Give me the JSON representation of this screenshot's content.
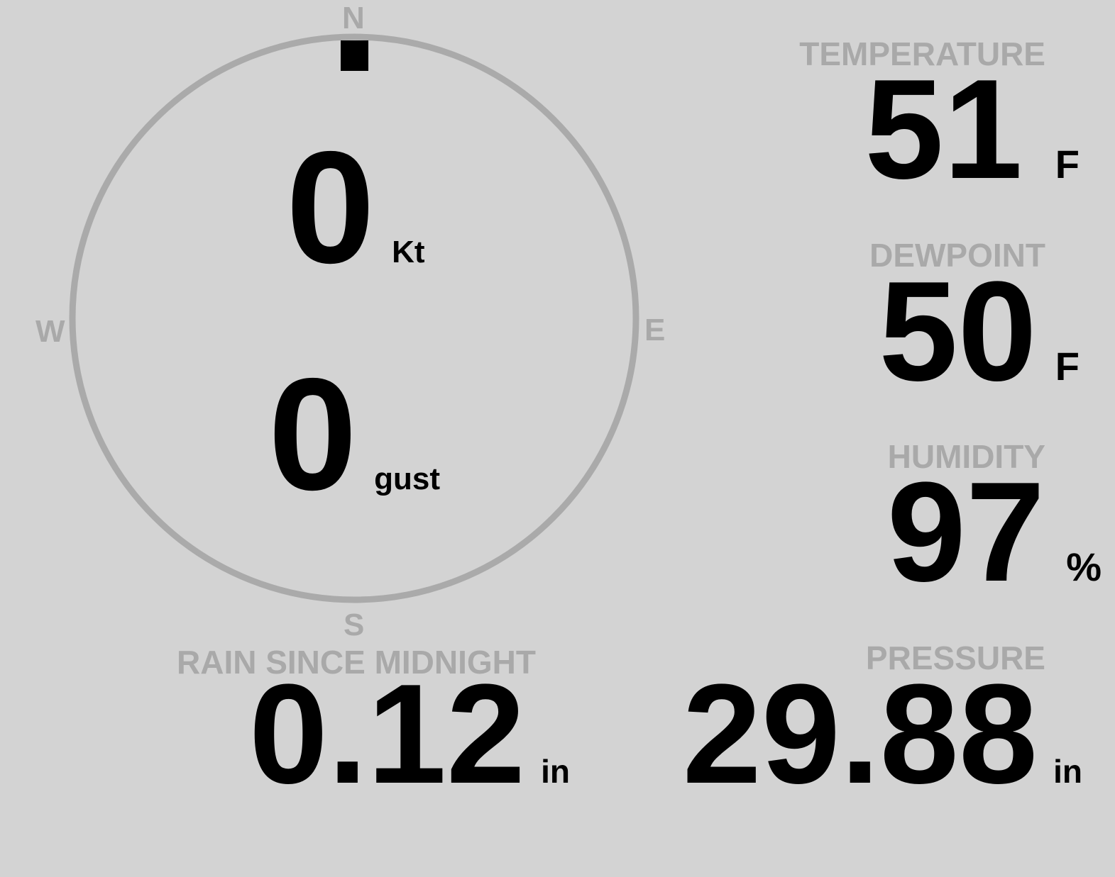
{
  "compass": {
    "north": "N",
    "east": "E",
    "south": "S",
    "west": "W",
    "wind_direction_deg": 0,
    "ring_color": "#aaaaaa",
    "marker_color": "#000000"
  },
  "wind": {
    "speed": "0",
    "speed_unit": "Kt",
    "gust": "0",
    "gust_unit": "gust"
  },
  "temperature": {
    "label": "TEMPERATURE",
    "value": "51",
    "unit": "F"
  },
  "dewpoint": {
    "label": "DEWPOINT",
    "value": "50",
    "unit": "F"
  },
  "humidity": {
    "label": "HUMIDITY",
    "value": "97",
    "unit": "%"
  },
  "rain": {
    "label": "RAIN SINCE MIDNIGHT",
    "value": "0.12",
    "unit": "in"
  },
  "pressure": {
    "label": "PRESSURE",
    "value": "29.88",
    "unit": "in"
  }
}
